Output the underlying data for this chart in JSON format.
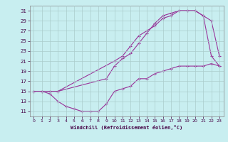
{
  "xlabel": "Windchill (Refroidissement éolien,°C)",
  "bg_color": "#c8eef0",
  "grid_color": "#aaddcc",
  "line_color": "#993399",
  "xlim": [
    -0.5,
    23.5
  ],
  "ylim": [
    10,
    32
  ],
  "yticks": [
    11,
    13,
    15,
    17,
    19,
    21,
    23,
    25,
    27,
    29,
    31
  ],
  "xticks": [
    0,
    1,
    2,
    3,
    4,
    5,
    6,
    7,
    8,
    9,
    10,
    11,
    12,
    13,
    14,
    15,
    16,
    17,
    18,
    19,
    20,
    21,
    22,
    23
  ],
  "curve1_x": [
    0,
    1,
    2,
    3,
    10,
    11,
    12,
    13,
    14,
    15,
    16,
    17,
    18,
    19,
    20,
    21,
    22,
    23
  ],
  "curve1_y": [
    15,
    15,
    15,
    15,
    21,
    22,
    24,
    26,
    27,
    28,
    29.5,
    30,
    31,
    31,
    31,
    30,
    29,
    22
  ],
  "curve2_x": [
    1,
    2,
    3,
    4,
    5,
    6,
    7,
    8,
    9,
    10,
    11,
    12,
    13,
    14,
    15,
    16,
    17,
    18,
    19,
    20,
    21,
    22,
    23
  ],
  "curve2_y": [
    15,
    14.5,
    13,
    12,
    11.5,
    11,
    11,
    11,
    12.5,
    15,
    15.5,
    16,
    17.5,
    17.5,
    18.5,
    19,
    19.5,
    20,
    20,
    20,
    20,
    20.5,
    20
  ],
  "curve3_x": [
    0,
    1,
    2,
    3,
    9,
    10,
    11,
    12,
    13,
    14,
    15,
    16,
    17,
    18,
    19,
    20,
    21,
    22,
    23
  ],
  "curve3_y": [
    15,
    15,
    15,
    15,
    17.5,
    20,
    21.5,
    22.5,
    24.5,
    26.5,
    28.5,
    30,
    30.5,
    31,
    31,
    31,
    30,
    22,
    20
  ]
}
